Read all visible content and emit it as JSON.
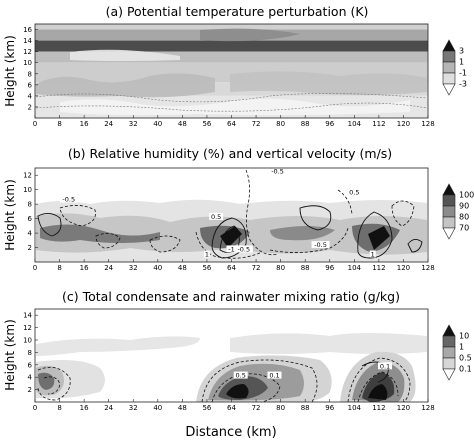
{
  "figure": {
    "xlabel": "Distance (km)",
    "xticks": [
      "0",
      "8",
      "16",
      "24",
      "32",
      "40",
      "48",
      "56",
      "64",
      "72",
      "80",
      "88",
      "96",
      "104",
      "112",
      "120",
      "128"
    ],
    "panels": [
      {
        "title": "(a) Potential temperature perturbation (K)",
        "ylabel": "Height (km)",
        "yticks": [
          "2",
          "4",
          "6",
          "8",
          "10",
          "12",
          "14",
          "16"
        ],
        "ymax": 17,
        "colorbar": [
          "3",
          "1",
          "-1",
          "-3"
        ],
        "bands": [
          {
            "y0": 16,
            "y1": 17,
            "shade": "#d0d0d0"
          },
          {
            "y0": 14,
            "y1": 16,
            "shade": "#a7a7a7"
          },
          {
            "y0": 12,
            "y1": 14,
            "shade": "#4c4c4c"
          },
          {
            "y0": 10,
            "y1": 12,
            "shade": "#bdbdbd"
          },
          {
            "y0": 6.5,
            "y1": 10,
            "shade": "#cdcdcd"
          },
          {
            "y0": 4,
            "y1": 6.5,
            "shade": "#d9d9d9"
          },
          {
            "y0": 0,
            "y1": 4,
            "shade": "#e6e6e6"
          }
        ]
      },
      {
        "title": "(b) Relative humidity (%) and vertical velocity (m/s)",
        "ylabel": "Height (km)",
        "yticks": [
          "2",
          "4",
          "6",
          "8",
          "10",
          "12"
        ],
        "ymax": 13,
        "colorbar": [
          "100",
          "90",
          "80",
          "70"
        ],
        "contour_labels": [
          {
            "text": "-0.5",
            "x": 79,
            "y": 12.4
          },
          {
            "text": "0.5",
            "x": 104,
            "y": 9.5
          },
          {
            "text": "-0.5",
            "x": 93,
            "y": 2.2
          },
          {
            "text": "-0.5",
            "x": 11,
            "y": 8.5
          },
          {
            "text": "0.5",
            "x": 59,
            "y": 6.1
          },
          {
            "text": "-1",
            "x": 64,
            "y": 1.6
          },
          {
            "text": "-0.5",
            "x": 68,
            "y": 1.6
          },
          {
            "text": "1",
            "x": 56,
            "y": 0.9
          },
          {
            "text": "1",
            "x": 110,
            "y": 0.9
          }
        ]
      },
      {
        "title": "(c) Total condensate and rainwater mixing ratio (g/kg)",
        "ylabel": "Height (km)",
        "yticks": [
          "2",
          "4",
          "6",
          "8",
          "10",
          "12",
          "14"
        ],
        "ymax": 15,
        "colorbar": [
          "10",
          "1",
          "0.5",
          "0.1"
        ],
        "contour_labels": [
          {
            "text": "0.5",
            "x": 67,
            "y": 4.1
          },
          {
            "text": "0.1",
            "x": 78,
            "y": 4.1
          },
          {
            "text": "0.1",
            "x": 114,
            "y": 5.6
          }
        ]
      }
    ]
  }
}
